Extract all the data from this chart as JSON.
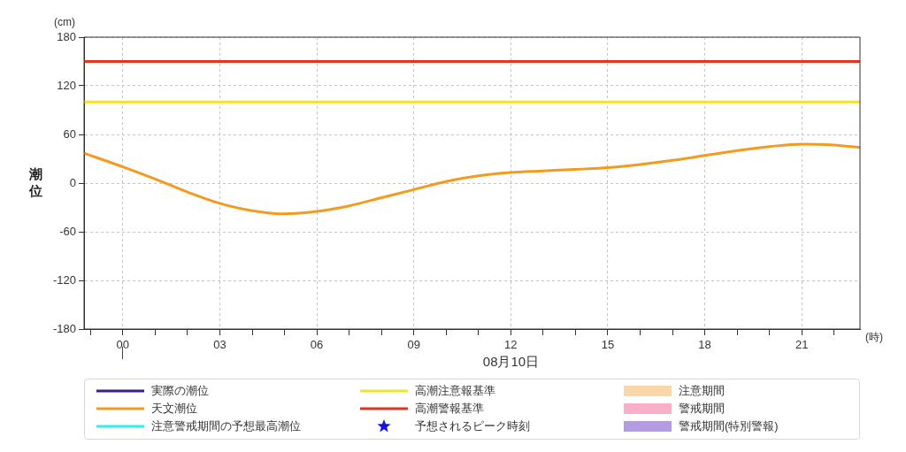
{
  "chart_data": {
    "type": "line",
    "ylabel": "潮位",
    "xlabel": "08月10日",
    "annotations": [
      "(cm)",
      "(時)"
    ],
    "xlim": [
      -1.2,
      22.8
    ],
    "ylim": [
      -180,
      180
    ],
    "yticks": [
      -180,
      -120,
      -60,
      0,
      60,
      120,
      180
    ],
    "xticks": [
      {
        "value": -1,
        "label": null
      },
      {
        "value": 0,
        "label": "00"
      },
      {
        "value": 1,
        "label": null
      },
      {
        "value": 2,
        "label": null
      },
      {
        "value": 3,
        "label": "03"
      },
      {
        "value": 4,
        "label": null
      },
      {
        "value": 5,
        "label": null
      },
      {
        "value": 6,
        "label": "06"
      },
      {
        "value": 7,
        "label": null
      },
      {
        "value": 8,
        "label": null
      },
      {
        "value": 9,
        "label": "09"
      },
      {
        "value": 10,
        "label": null
      },
      {
        "value": 11,
        "label": null
      },
      {
        "value": 12,
        "label": "12"
      },
      {
        "value": 13,
        "label": null
      },
      {
        "value": 14,
        "label": null
      },
      {
        "value": 15,
        "label": "15"
      },
      {
        "value": 16,
        "label": null
      },
      {
        "value": 17,
        "label": null
      },
      {
        "value": 18,
        "label": "18"
      },
      {
        "value": 19,
        "label": null
      },
      {
        "value": 20,
        "label": null
      },
      {
        "value": 21,
        "label": "21"
      },
      {
        "value": 22,
        "label": null
      }
    ],
    "grid": true,
    "legend": "bottom",
    "marker": "none",
    "series": [
      {
        "name": "実際の潮位",
        "type": "line",
        "color": "#3b1e8f"
      },
      {
        "name": "天文潮位",
        "type": "line",
        "color": "#f39a1f",
        "x": [
          -1.2,
          0,
          1,
          2,
          3,
          4,
          5,
          6,
          7,
          8,
          9,
          10,
          11,
          12,
          13,
          14,
          15,
          16,
          17,
          18,
          19,
          20,
          21,
          22,
          22.8
        ],
        "values": [
          37,
          20,
          5,
          -11,
          -25,
          -34,
          -38,
          -35,
          -28,
          -18,
          -8,
          2,
          9,
          13,
          15,
          17,
          19,
          23,
          28,
          34,
          40,
          45,
          48,
          47,
          44
        ]
      },
      {
        "name": "注意警戒期間の予想最高潮位",
        "type": "line",
        "color": "#2ef0f0"
      },
      {
        "name": "高潮注意報基準",
        "type": "line",
        "color": "#f0e32c",
        "x": [
          -1.2,
          22.8
        ],
        "values": [
          100,
          100
        ]
      },
      {
        "name": "高潮警報基準",
        "type": "line",
        "color": "#e5331c",
        "x": [
          -1.2,
          22.8
        ],
        "values": [
          150,
          150
        ]
      },
      {
        "name": "予想されるピーク時刻",
        "type": "scatter",
        "marker": "star",
        "color": "#1414e0"
      },
      {
        "name": "注意期間",
        "type": "area",
        "color": "#fad7a8"
      },
      {
        "name": "警戒期間",
        "type": "area",
        "color": "#f8b0c8"
      },
      {
        "name": "警戒期間(特別警報)",
        "type": "area",
        "color": "#b39de0"
      }
    ]
  }
}
